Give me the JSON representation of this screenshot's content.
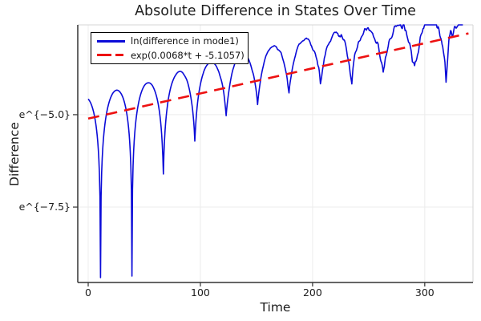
{
  "chart_data": {
    "type": "line",
    "title": "Absolute Difference in States Over Time",
    "xlabel": "Time",
    "ylabel": "Difference",
    "x_axis": {
      "lim": [
        -9.3,
        343
      ],
      "ticks": [
        0,
        100,
        200,
        300
      ],
      "tick_labels": [
        "0",
        "100",
        "200",
        "300"
      ]
    },
    "y_axis": {
      "scale": "ln",
      "lim": [
        -9.54,
        -2.57
      ],
      "ticks": [
        -5.0,
        -7.5
      ],
      "tick_labels": [
        "e^{−5.0}",
        "e^{−7.5}"
      ]
    },
    "grid": true,
    "legend_position": "top-left",
    "colors": {
      "frame_dark": "#333333",
      "frame_light": "#d4d4d4",
      "gridline": "#ececec",
      "text": "#1c1c1c"
    },
    "series": [
      {
        "name": "ln(difference in mode1)",
        "color": "#0b0bd8",
        "style": "solid",
        "line_width": 1.6,
        "model": {
          "kind": "log_beating_difference",
          "trend_slope": 0.0068,
          "trend_intercept": -5.1057,
          "beat_period": 28,
          "beat_phase": 11,
          "dip_times": [
            11,
            39,
            67,
            95,
            123,
            151,
            179,
            207,
            235,
            263,
            291,
            319
          ],
          "peak_offset_points": [
            [
              0,
              0.58
            ],
            [
              100,
              0.62
            ],
            [
              200,
              0.5
            ],
            [
              250,
              0.42
            ],
            [
              305,
              0.3
            ],
            [
              340,
              0.05
            ]
          ],
          "floor_points": [
            [
              0,
              -9.4
            ],
            [
              52,
              -9.4
            ],
            [
              67,
              -6.6
            ],
            [
              95,
              -5.75
            ],
            [
              123,
              -5.1
            ],
            [
              151,
              -4.76
            ],
            [
              179,
              -4.42
            ],
            [
              207,
              -4.25
            ],
            [
              235,
              -4.1
            ],
            [
              263,
              -3.95
            ],
            [
              291,
              -3.85
            ],
            [
              319,
              -3.8
            ],
            [
              341,
              -3.6
            ]
          ],
          "noise_signal_amp": [
            [
              0,
              0
            ],
            [
              140,
              0.01
            ],
            [
              240,
              0.1
            ],
            [
              340,
              0.17
            ]
          ],
          "noise_floor_amp": [
            [
              0,
              0.05
            ],
            [
              120,
              0.1
            ],
            [
              240,
              0.24
            ],
            [
              340,
              0.38
            ]
          ],
          "t_start": 0,
          "t_end": 334,
          "dt": 0.5
        }
      },
      {
        "name": "exp(0.0068*t + -5.1057)",
        "color": "#ed1111",
        "style": "dashed",
        "line_width": 2.6,
        "dash": [
          14,
          9
        ],
        "model": {
          "kind": "linear_ln",
          "slope": 0.0068,
          "intercept": -5.1057,
          "t_start": 0,
          "t_end": 339
        }
      }
    ]
  }
}
